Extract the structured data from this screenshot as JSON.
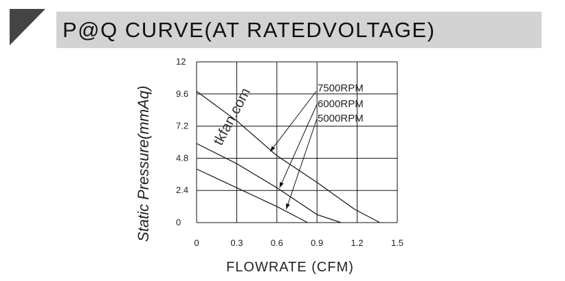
{
  "chart_data": {
    "type": "line",
    "title": "P@Q CURVE(AT RATEDVOLTAGE)",
    "xlabel": "FLOWRATE (CFM)",
    "ylabel": "Static  Pressure(mmAq)",
    "xlim": [
      0,
      1.5
    ],
    "ylim": [
      0,
      12
    ],
    "x_ticks": [
      "0",
      "0.3",
      "0.6",
      "0.9",
      "1.2",
      "1.5"
    ],
    "y_ticks": [
      "12",
      "9.6",
      "7.2",
      "4.8",
      "2.4",
      "0"
    ],
    "grid": true,
    "watermark": "tkfan.com",
    "series": [
      {
        "name": "7500RPM",
        "x": [
          0,
          0.3,
          0.6,
          0.9,
          1.18,
          1.37
        ],
        "y": [
          9.8,
          7.6,
          5.0,
          3.0,
          1.0,
          0
        ]
      },
      {
        "name": "6000RPM",
        "x": [
          0,
          0.3,
          0.6,
          0.9,
          1.08
        ],
        "y": [
          5.9,
          4.4,
          2.6,
          0.6,
          0
        ]
      },
      {
        "name": "5000RPM",
        "x": [
          0,
          0.3,
          0.6,
          0.83
        ],
        "y": [
          4.0,
          2.6,
          1.2,
          0
        ]
      }
    ],
    "arrow_targets": [
      {
        "series": "7500RPM",
        "x": 0.55,
        "y": 5.3
      },
      {
        "series": "6000RPM",
        "x": 0.62,
        "y": 2.6
      },
      {
        "series": "5000RPM",
        "x": 0.67,
        "y": 1.0
      }
    ]
  }
}
